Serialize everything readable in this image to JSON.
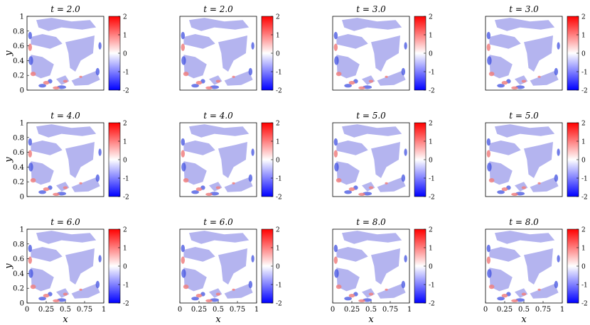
{
  "chart_data": {
    "type": "heatmap",
    "layout": {
      "rows": 3,
      "cols": 4
    },
    "xlabel": "x",
    "ylabel": "y",
    "xlim": [
      0,
      1
    ],
    "ylim": [
      0,
      1
    ],
    "x_ticks": [
      "0",
      "0.25",
      "0.5",
      "0.75",
      "1"
    ],
    "y_ticks": [
      "0",
      "0.2",
      "0.4",
      "0.6",
      "0.8",
      "1"
    ],
    "colorbar": {
      "range": [
        -2,
        2
      ],
      "ticks": [
        "2",
        "1",
        "0",
        "-1",
        "-2"
      ],
      "colors": {
        "low": "#0000ff",
        "mid": "#ffffff",
        "high": "#ff0000"
      }
    },
    "fill_color": "#b4b4ef",
    "panels": [
      {
        "title": "t = 2.0"
      },
      {
        "title": "t = 2.0"
      },
      {
        "title": "t = 3.0"
      },
      {
        "title": "t = 3.0"
      },
      {
        "title": "t = 4.0"
      },
      {
        "title": "t = 4.0"
      },
      {
        "title": "t = 5.0"
      },
      {
        "title": "t = 5.0"
      },
      {
        "title": "t = 6.0"
      },
      {
        "title": "t = 6.0"
      },
      {
        "title": "t = 8.0"
      },
      {
        "title": "t = 8.0"
      }
    ]
  }
}
